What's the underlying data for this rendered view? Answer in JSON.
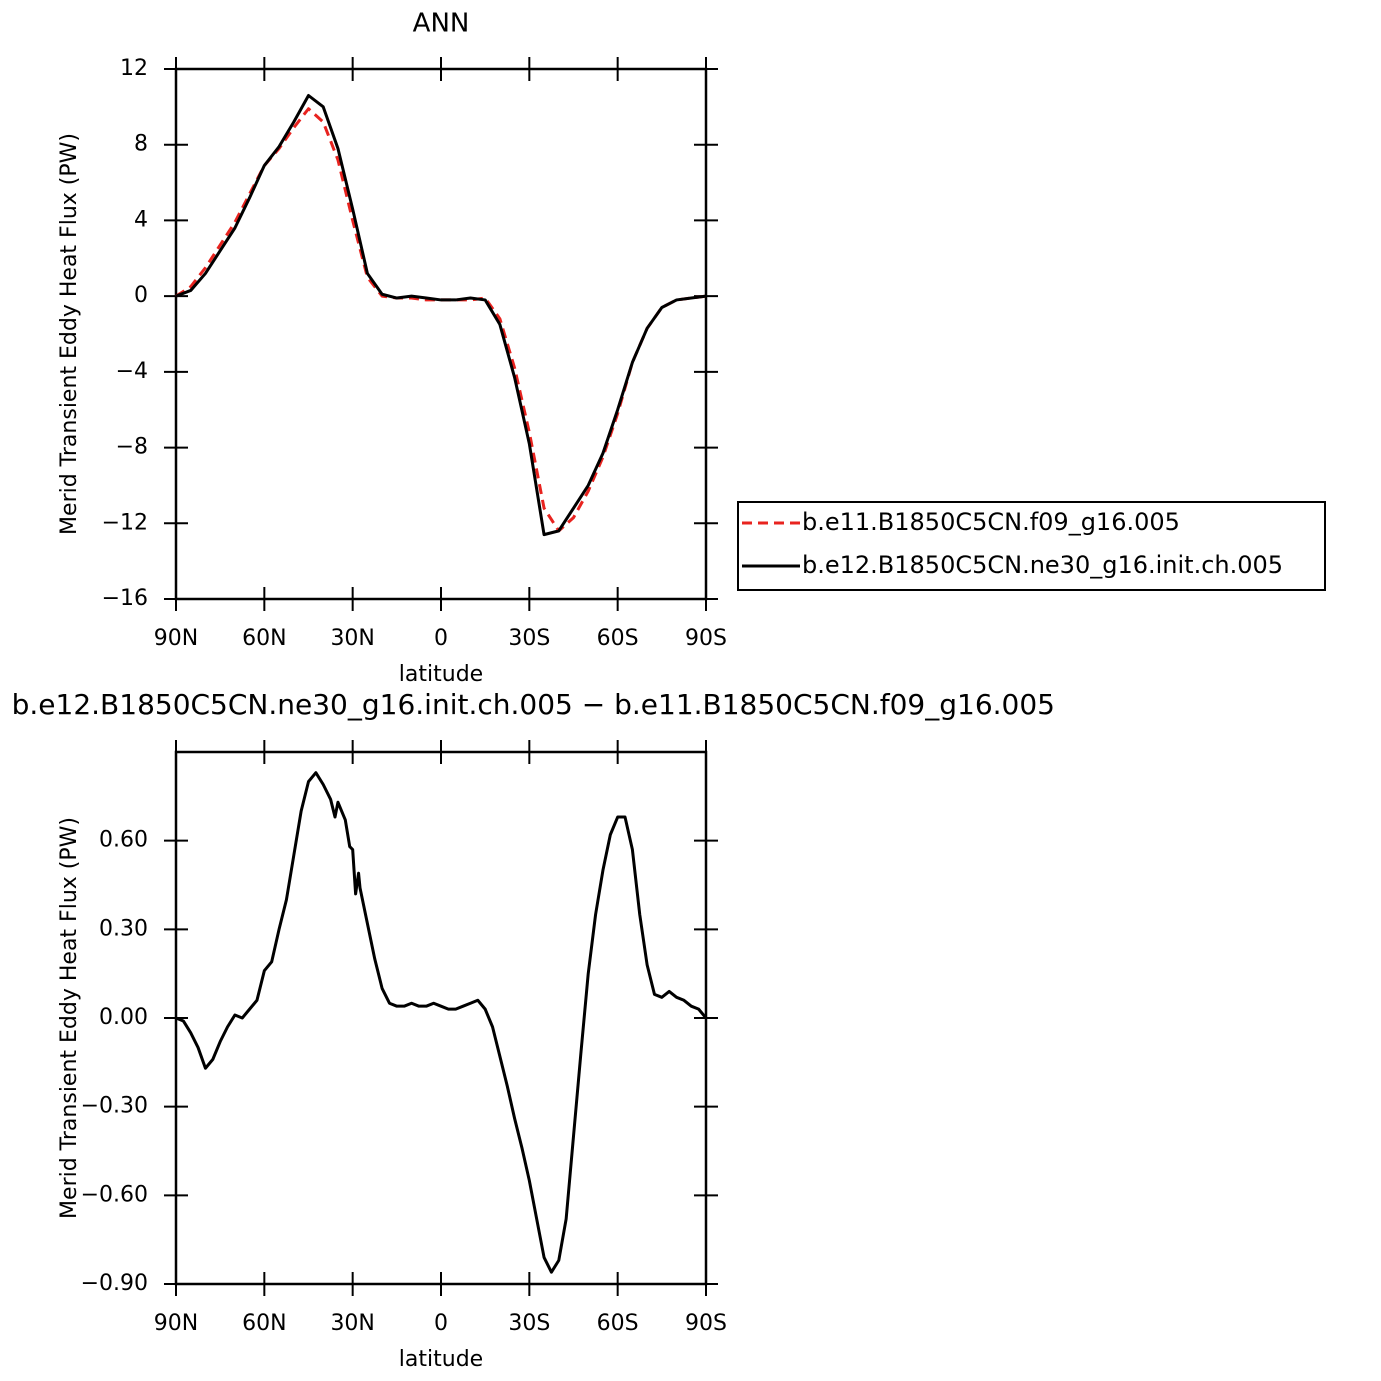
{
  "chart_data": [
    {
      "type": "line",
      "title": "ANN",
      "xlabel": "latitude",
      "ylabel": "Merid Transient Eddy Heat Flux (PW)",
      "x": [
        90,
        85,
        80,
        75,
        70,
        65,
        60,
        55,
        50,
        45,
        40,
        35,
        30,
        25,
        20,
        15,
        10,
        5,
        0,
        -5,
        -10,
        -15,
        -20,
        -25,
        -30,
        -35,
        -40,
        -45,
        -50,
        -55,
        -60,
        -65,
        -70,
        -75,
        -80,
        -85,
        -90
      ],
      "series": [
        {
          "name": "b.e11.B1850C5CN.f09_g16.005",
          "color": "#e8231f",
          "dash": true,
          "values": [
            0,
            0.5,
            1.5,
            2.7,
            3.9,
            5.4,
            6.9,
            7.8,
            8.9,
            9.9,
            9.2,
            7.2,
            4.0,
            1.0,
            0.0,
            -0.1,
            -0.1,
            -0.2,
            -0.2,
            -0.2,
            -0.2,
            -0.1,
            -1.2,
            -3.8,
            -7.2,
            -11.2,
            -12.4,
            -11.7,
            -10.3,
            -8.5,
            -6.2,
            -3.5,
            -1.7,
            -0.6,
            -0.2,
            -0.1,
            0
          ]
        },
        {
          "name": "b.e12.B1850C5CN.ne30_g16.init.ch.005",
          "color": "#000000",
          "dash": false,
          "values": [
            0,
            0.3,
            1.2,
            2.4,
            3.6,
            5.2,
            6.9,
            7.9,
            9.2,
            10.6,
            10.0,
            7.8,
            4.6,
            1.2,
            0.1,
            -0.1,
            0,
            -0.1,
            -0.2,
            -0.2,
            -0.1,
            -0.2,
            -1.5,
            -4.3,
            -7.8,
            -12.6,
            -12.4,
            -11.2,
            -10.0,
            -8.3,
            -6.0,
            -3.5,
            -1.7,
            -0.6,
            -0.2,
            -0.1,
            0
          ]
        }
      ],
      "xlim": [
        90,
        -90
      ],
      "xticks": [
        {
          "value": 90,
          "label": "90N"
        },
        {
          "value": 60,
          "label": "60N"
        },
        {
          "value": 30,
          "label": "30N"
        },
        0,
        {
          "value": -30,
          "label": "30S"
        },
        {
          "value": -60,
          "label": "60S"
        },
        {
          "value": -90,
          "label": "90S"
        }
      ],
      "ylim": [
        -16,
        12
      ],
      "yticks": [
        12,
        8,
        4,
        0,
        {
          "value": -4,
          "label": "−4"
        },
        {
          "value": -8,
          "label": "−8"
        },
        {
          "value": -12,
          "label": "−12"
        },
        {
          "value": -16,
          "label": "−16"
        }
      ],
      "legend": "right"
    },
    {
      "type": "line",
      "title": "b.e12.B1850C5CN.ne30_g16.init.ch.005 − b.e11.B1850C5CN.f09_g16.005",
      "xlabel": "latitude",
      "ylabel": "Merid Transient Eddy Heat Flux (PW)",
      "x": [
        90,
        87.5,
        85,
        82.5,
        80,
        77.5,
        75,
        72.5,
        70,
        67.5,
        65,
        62.5,
        60,
        57.5,
        55,
        52.5,
        50,
        47.5,
        45,
        42.5,
        40,
        37.5,
        36,
        35,
        32.5,
        31,
        30,
        29,
        28,
        27.5,
        25,
        22.5,
        20,
        17.5,
        15,
        12.5,
        10,
        7.5,
        5,
        2.5,
        0,
        -2.5,
        -5,
        -7.5,
        -10,
        -12.5,
        -15,
        -17.5,
        -20,
        -22.5,
        -25,
        -27.5,
        -30,
        -32.5,
        -35,
        -37.5,
        -40,
        -42.5,
        -45,
        -47.5,
        -50,
        -52.5,
        -55,
        -57.5,
        -60,
        -62.5,
        -65,
        -67.5,
        -70,
        -72.5,
        -75,
        -77.5,
        -80,
        -82.5,
        -85,
        -87.5,
        -90
      ],
      "series": [
        {
          "color": "#000000",
          "values": [
            0.0,
            -0.01,
            -0.05,
            -0.1,
            -0.17,
            -0.14,
            -0.08,
            -0.03,
            0.01,
            0.0,
            0.03,
            0.06,
            0.16,
            0.19,
            0.3,
            0.4,
            0.55,
            0.7,
            0.8,
            0.83,
            0.79,
            0.74,
            0.68,
            0.73,
            0.67,
            0.58,
            0.57,
            0.42,
            0.49,
            0.44,
            0.32,
            0.2,
            0.1,
            0.05,
            0.04,
            0.04,
            0.05,
            0.04,
            0.04,
            0.05,
            0.04,
            0.03,
            0.03,
            0.04,
            0.05,
            0.06,
            0.03,
            -0.03,
            -0.13,
            -0.23,
            -0.34,
            -0.44,
            -0.55,
            -0.68,
            -0.81,
            -0.86,
            -0.82,
            -0.68,
            -0.4,
            -0.12,
            0.15,
            0.35,
            0.5,
            0.62,
            0.68,
            0.68,
            0.57,
            0.35,
            0.18,
            0.08,
            0.07,
            0.09,
            0.07,
            0.06,
            0.04,
            0.03,
            0.0
          ]
        }
      ],
      "xlim": [
        90,
        -90
      ],
      "xticks": [
        {
          "value": 90,
          "label": "90N"
        },
        {
          "value": 60,
          "label": "60N"
        },
        {
          "value": 30,
          "label": "30N"
        },
        0,
        {
          "value": -30,
          "label": "30S"
        },
        {
          "value": -60,
          "label": "60S"
        },
        {
          "value": -90,
          "label": "90S"
        }
      ],
      "ylim": [
        -0.9,
        0.9
      ],
      "yticks": [
        {
          "value": 0.6,
          "label": "0.60"
        },
        {
          "value": 0.3,
          "label": "0.30"
        },
        {
          "value": 0,
          "label": "0.00"
        },
        {
          "value": -0.3,
          "label": "−0.30"
        },
        {
          "value": -0.6,
          "label": "−0.60"
        },
        {
          "value": -0.9,
          "label": "−0.90"
        }
      ]
    }
  ]
}
